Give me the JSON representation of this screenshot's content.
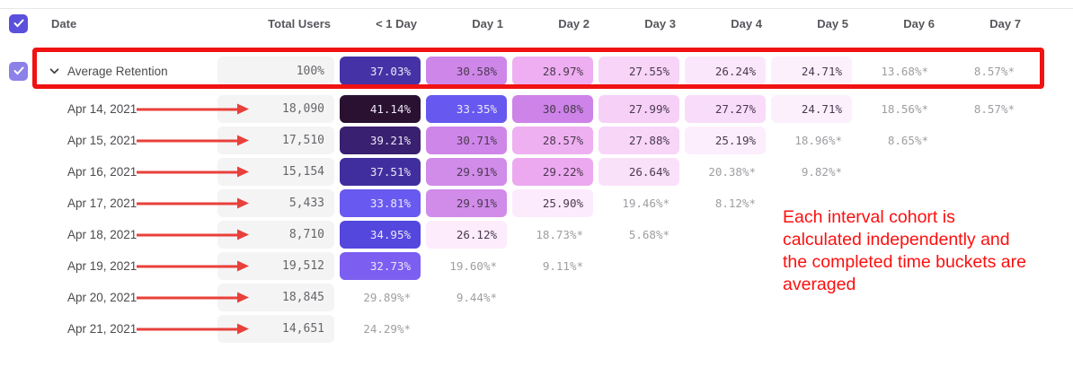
{
  "colors": {
    "red_rect": "#f01212",
    "red_arrow": "#e8403a",
    "red_text": "#fb0f0f",
    "checkbox_main": "#5a50dc",
    "checkbox_row": "#8c81e9",
    "header_text": "#56575c",
    "date_text": "#4b4b4f",
    "total_pill_bg": "#f4f4f5",
    "total_text": "#66666a",
    "muted_text": "#9e9ea2",
    "pill_light_text": "#ece6f6",
    "pill_dark_text": "#4a3a50"
  },
  "table": {
    "columns": [
      "Date",
      "Total Users",
      "< 1 Day",
      "Day 1",
      "Day 2",
      "Day 3",
      "Day 4",
      "Day 5",
      "Day 6",
      "Day 7"
    ],
    "rows": [
      {
        "label": "Average Retention",
        "average": true,
        "checkbox": true,
        "chevron": true,
        "total": "100%",
        "cells": [
          {
            "t": "37.03%",
            "bg": "#4532a6",
            "tone": "dark"
          },
          {
            "t": "30.58%",
            "bg": "#cf86e9",
            "tone": "light"
          },
          {
            "t": "28.97%",
            "bg": "#eeaef1",
            "tone": "light"
          },
          {
            "t": "27.55%",
            "bg": "#f7d4f8",
            "tone": "light"
          },
          {
            "t": "26.24%",
            "bg": "#fbe7fc",
            "tone": "light"
          },
          {
            "t": "24.71%",
            "bg": "#fdf0fd",
            "tone": "light"
          },
          {
            "t": "13.68%*",
            "tone": "muted"
          },
          {
            "t": "8.57%*",
            "tone": "muted"
          }
        ]
      },
      {
        "label": "Apr 14, 2021",
        "arrow": true,
        "total": "18,090",
        "cells": [
          {
            "t": "41.14%",
            "bg": "#2a1132",
            "tone": "dark"
          },
          {
            "t": "33.35%",
            "bg": "#6759ef",
            "tone": "dark"
          },
          {
            "t": "30.08%",
            "bg": "#cd83e8",
            "tone": "light"
          },
          {
            "t": "27.99%",
            "bg": "#f6d0f7",
            "tone": "light"
          },
          {
            "t": "27.27%",
            "bg": "#f9dcf9",
            "tone": "light"
          },
          {
            "t": "24.71%",
            "bg": "#fdf0fd",
            "tone": "light"
          },
          {
            "t": "18.56%*",
            "tone": "muted"
          },
          {
            "t": "8.57%*",
            "tone": "muted"
          }
        ]
      },
      {
        "label": "Apr 15, 2021",
        "arrow": true,
        "total": "17,510",
        "cells": [
          {
            "t": "39.21%",
            "bg": "#392070",
            "tone": "dark"
          },
          {
            "t": "30.71%",
            "bg": "#cf86e9",
            "tone": "light"
          },
          {
            "t": "28.57%",
            "bg": "#efb0f1",
            "tone": "light"
          },
          {
            "t": "27.88%",
            "bg": "#f7d6f8",
            "tone": "light"
          },
          {
            "t": "25.19%",
            "bg": "#fceefd",
            "tone": "light"
          },
          {
            "t": "18.96%*",
            "tone": "muted"
          },
          {
            "t": "8.65%*",
            "tone": "muted"
          },
          null
        ]
      },
      {
        "label": "Apr 16, 2021",
        "arrow": true,
        "total": "15,154",
        "cells": [
          {
            "t": "37.51%",
            "bg": "#412e9e",
            "tone": "dark"
          },
          {
            "t": "29.91%",
            "bg": "#d18be9",
            "tone": "light"
          },
          {
            "t": "29.22%",
            "bg": "#eda9f0",
            "tone": "light"
          },
          {
            "t": "26.64%",
            "bg": "#fae1fa",
            "tone": "light"
          },
          {
            "t": "20.38%*",
            "tone": "muted"
          },
          {
            "t": "9.82%*",
            "tone": "muted"
          },
          null,
          null
        ]
      },
      {
        "label": "Apr 17, 2021",
        "arrow": true,
        "total": "5,433",
        "cells": [
          {
            "t": "33.81%",
            "bg": "#685af0",
            "tone": "dark"
          },
          {
            "t": "29.91%",
            "bg": "#d18be9",
            "tone": "light"
          },
          {
            "t": "25.90%",
            "bg": "#fcebfc",
            "tone": "light"
          },
          {
            "t": "19.46%*",
            "tone": "muted"
          },
          {
            "t": "8.12%*",
            "tone": "muted"
          },
          null,
          null,
          null
        ]
      },
      {
        "label": "Apr 18, 2021",
        "arrow": true,
        "total": "8,710",
        "cells": [
          {
            "t": "34.95%",
            "bg": "#5347de",
            "tone": "dark"
          },
          {
            "t": "26.12%",
            "bg": "#fcecfc",
            "tone": "light"
          },
          {
            "t": "18.73%*",
            "tone": "muted"
          },
          {
            "t": "5.68%*",
            "tone": "muted"
          },
          null,
          null,
          null,
          null
        ]
      },
      {
        "label": "Apr 19, 2021",
        "arrow": true,
        "total": "19,512",
        "cells": [
          {
            "t": "32.73%",
            "bg": "#7c5ff1",
            "tone": "dark"
          },
          {
            "t": "19.60%*",
            "tone": "muted"
          },
          {
            "t": "9.11%*",
            "tone": "muted"
          },
          null,
          null,
          null,
          null,
          null
        ]
      },
      {
        "label": "Apr 20, 2021",
        "arrow": true,
        "total": "18,845",
        "cells": [
          {
            "t": "29.89%*",
            "tone": "muted"
          },
          {
            "t": "9.44%*",
            "tone": "muted"
          },
          null,
          null,
          null,
          null,
          null,
          null
        ]
      },
      {
        "label": "Apr 21, 2021",
        "arrow": true,
        "total": "14,651",
        "cells": [
          {
            "t": "24.29%*",
            "tone": "muted"
          },
          null,
          null,
          null,
          null,
          null,
          null,
          null
        ]
      }
    ]
  },
  "annotation": {
    "lines": [
      "Each interval cohort is",
      "calculated independently and",
      "the completed time buckets are",
      "averaged"
    ]
  }
}
